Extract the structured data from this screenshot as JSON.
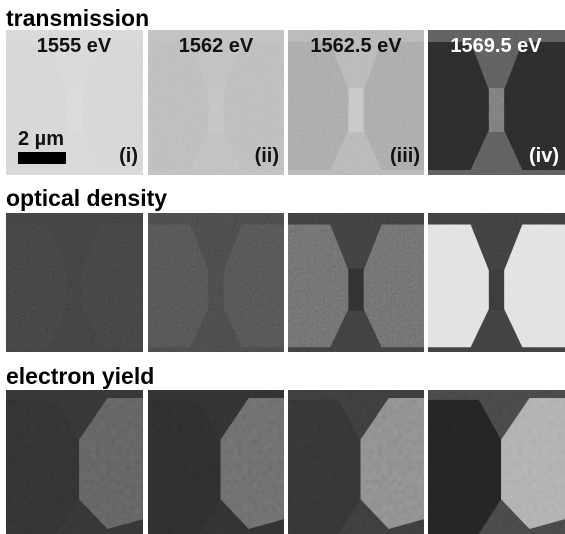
{
  "rows": [
    {
      "title": "transmission"
    },
    {
      "title": "optical density"
    },
    {
      "title": "electron yield"
    }
  ],
  "panels": [
    {
      "energy": "1555 eV",
      "index": "(i)"
    },
    {
      "energy": "1562 eV",
      "index": "(ii)"
    },
    {
      "energy": "1562.5 eV",
      "index": "(iii)"
    },
    {
      "energy": "1569.5 eV",
      "index": "(iv)"
    }
  ],
  "scale_bar": "2 µm"
}
